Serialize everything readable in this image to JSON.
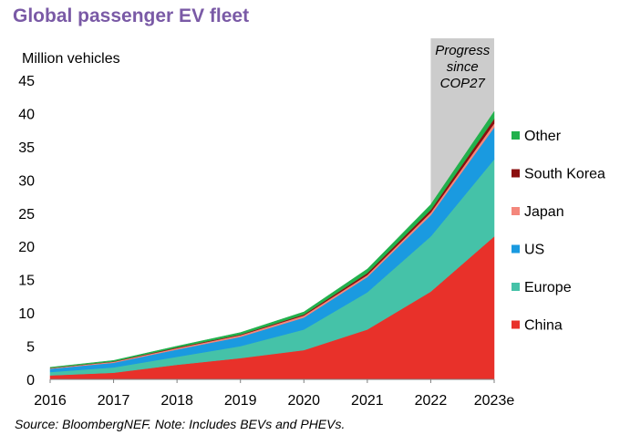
{
  "chart_data": {
    "type": "area",
    "stacked": true,
    "title": "Global passenger EV fleet",
    "ylabel": "Million vehicles",
    "categories": [
      "2016",
      "2017",
      "2018",
      "2019",
      "2020",
      "2021",
      "2022",
      "2023e"
    ],
    "ylim": [
      0,
      45
    ],
    "yticks": [
      0,
      5,
      10,
      15,
      20,
      25,
      30,
      35,
      40,
      45
    ],
    "grid": false,
    "legend_position": "right",
    "series": [
      {
        "name": "China",
        "color": "#e8312a",
        "values": [
          0.6,
          1.0,
          2.2,
          3.2,
          4.4,
          7.5,
          13.2,
          21.5
        ]
      },
      {
        "name": "Europe",
        "color": "#45c2a8",
        "values": [
          0.5,
          0.8,
          1.2,
          1.8,
          3.1,
          5.6,
          8.3,
          11.6
        ]
      },
      {
        "name": "US",
        "color": "#1a9ae0",
        "values": [
          0.5,
          0.7,
          1.1,
          1.4,
          1.8,
          2.3,
          3.2,
          4.8
        ]
      },
      {
        "name": "Japan",
        "color": "#f4877c",
        "values": [
          0.1,
          0.15,
          0.2,
          0.25,
          0.3,
          0.3,
          0.4,
          0.6
        ]
      },
      {
        "name": "South Korea",
        "color": "#8b0f0f",
        "values": [
          0.02,
          0.05,
          0.1,
          0.1,
          0.15,
          0.3,
          0.4,
          0.7
        ]
      },
      {
        "name": "Other",
        "color": "#22b14c",
        "values": [
          0.1,
          0.15,
          0.2,
          0.3,
          0.4,
          0.6,
          0.8,
          1.1
        ]
      }
    ],
    "highlight_band": {
      "from": "2022",
      "to": "2023e",
      "label_lines": [
        "Progress",
        "since",
        "COP27"
      ],
      "color": "#cccccc"
    }
  },
  "source": "Source: BloombergNEF. Note: Includes BEVs and PHEVs."
}
